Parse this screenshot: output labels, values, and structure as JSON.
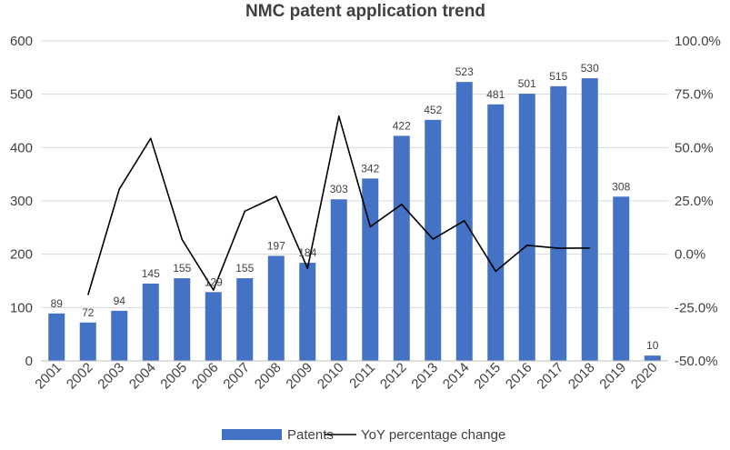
{
  "chart_data": {
    "type": "bar",
    "title": "NMC patent application trend",
    "categories": [
      "2001",
      "2002",
      "2003",
      "2004",
      "2005",
      "2006",
      "2007",
      "2008",
      "2009",
      "2010",
      "2011",
      "2012",
      "2013",
      "2014",
      "2015",
      "2016",
      "2017",
      "2018",
      "2019",
      "2020"
    ],
    "series": [
      {
        "name": "Patents",
        "type": "bar",
        "axis": "left",
        "color": "#4472C4",
        "values": [
          89,
          72,
          94,
          145,
          155,
          129,
          155,
          197,
          184,
          303,
          342,
          422,
          452,
          523,
          481,
          501,
          515,
          530,
          308,
          10
        ],
        "labels": [
          "89",
          "72",
          "94",
          "145",
          "155",
          "129",
          "155",
          "197",
          "184",
          "303",
          "342",
          "422",
          "452",
          "523",
          "481",
          "501",
          "515",
          "530",
          "308",
          "10"
        ]
      },
      {
        "name": "YoY percentage change",
        "type": "line",
        "axis": "right",
        "color": "#000000",
        "values": [
          null,
          -19.1,
          30.6,
          54.3,
          6.9,
          -16.8,
          20.2,
          27.1,
          -6.6,
          64.7,
          12.9,
          23.4,
          7.1,
          15.7,
          -8.0,
          4.2,
          2.8,
          2.9,
          null,
          null
        ]
      }
    ],
    "y_left": {
      "ylim": [
        0,
        600
      ],
      "ticks": [
        "0",
        "100",
        "200",
        "300",
        "400",
        "500",
        "600"
      ]
    },
    "y_right": {
      "ylim": [
        -50,
        100
      ],
      "ticks": [
        "-50.0%",
        "-25.0%",
        "0.0%",
        "25.0%",
        "50.0%",
        "75.0%",
        "100.0%"
      ]
    },
    "grid": true,
    "legend": {
      "placement": "bottom",
      "items": [
        "Patents",
        "YoY percentage change"
      ]
    }
  }
}
